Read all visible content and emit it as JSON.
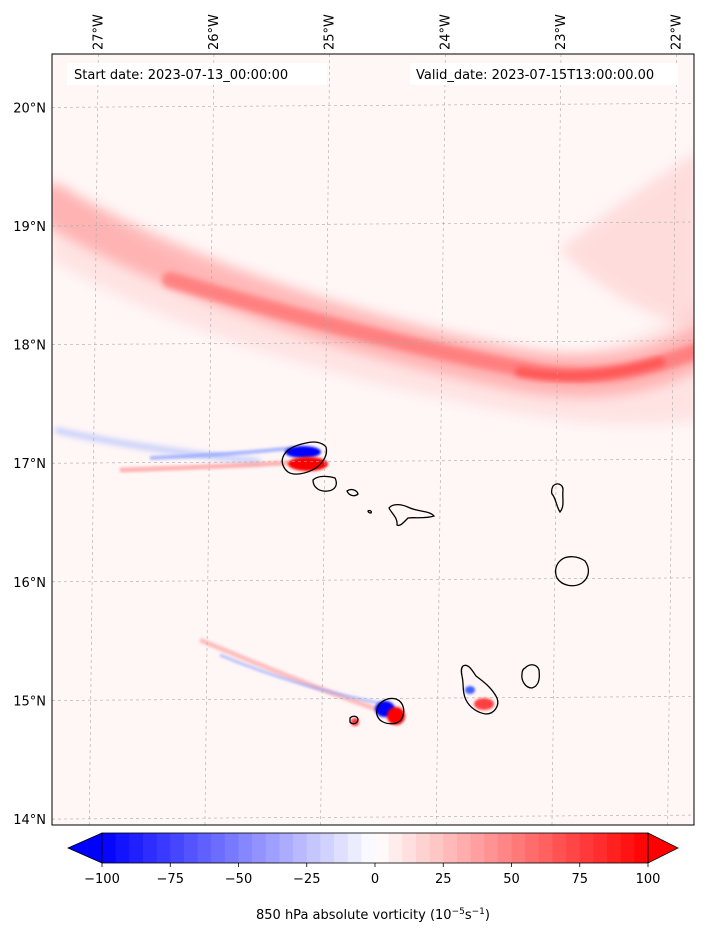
{
  "header": {
    "start_date": "Start date: 2023-07-13_00:00:00",
    "valid_date": "Valid_date: 2023-07-15T13:00:00.00"
  },
  "map": {
    "lon_range": [
      -27.4,
      -21.85
    ],
    "lat_range": [
      13.95,
      20.45
    ],
    "lon_ticks": [
      {
        "value": -27,
        "label": "27°W"
      },
      {
        "value": -26,
        "label": "26°W"
      },
      {
        "value": -25,
        "label": "25°W"
      },
      {
        "value": -24,
        "label": "24°W"
      },
      {
        "value": -23,
        "label": "23°W"
      },
      {
        "value": -22,
        "label": "22°W"
      }
    ],
    "lat_ticks": [
      {
        "value": 14,
        "label": "14°N"
      },
      {
        "value": 15,
        "label": "15°N"
      },
      {
        "value": 16,
        "label": "16°N"
      },
      {
        "value": 17,
        "label": "17°N"
      },
      {
        "value": 18,
        "label": "18°N"
      },
      {
        "value": 19,
        "label": "19°N"
      },
      {
        "value": 20,
        "label": "20°N"
      }
    ],
    "gridlines": true,
    "colors": {
      "negative": "#0000ff",
      "neutral": "#ffffff",
      "positive": "#ff0000",
      "coastline": "#000000"
    }
  },
  "colorbar": {
    "range": [
      -100,
      100
    ],
    "ticks": [
      {
        "value": -100,
        "label": "−100"
      },
      {
        "value": -75,
        "label": "−75"
      },
      {
        "value": -50,
        "label": "−50"
      },
      {
        "value": -25,
        "label": "−25"
      },
      {
        "value": 0,
        "label": "0"
      },
      {
        "value": 25,
        "label": "25"
      },
      {
        "value": 50,
        "label": "50"
      },
      {
        "value": 75,
        "label": "75"
      },
      {
        "value": 100,
        "label": "100"
      }
    ],
    "label_main": "850 hPa absolute vorticity (10",
    "label_exp1": "−5",
    "label_mid": "s",
    "label_exp2": "−1",
    "label_end": ")"
  }
}
